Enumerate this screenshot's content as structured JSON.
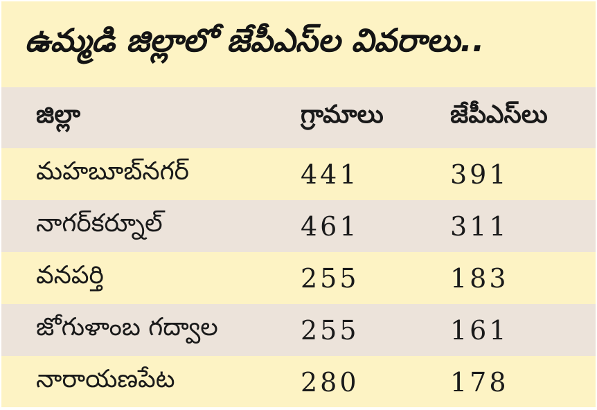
{
  "title": "ఉమ్మడి జిల్లాలో జేపీఎస్‌ల వివరాలు..",
  "columns": [
    "జిల్లా",
    "గ్రామాలు",
    "జేపీఎస్‌లు"
  ],
  "rows": [
    {
      "district": "మహబూబ్‌నగర్",
      "villages": "441",
      "jps": "391"
    },
    {
      "district": "నాగర్‌కర్నూల్",
      "villages": "461",
      "jps": "311"
    },
    {
      "district": "వనపర్తి",
      "villages": "255",
      "jps": "183"
    },
    {
      "district": "జోగుళాంబ గద్వాల",
      "villages": "255",
      "jps": "161"
    },
    {
      "district": "నారాయణపేట",
      "villages": "280",
      "jps": "178"
    }
  ]
}
